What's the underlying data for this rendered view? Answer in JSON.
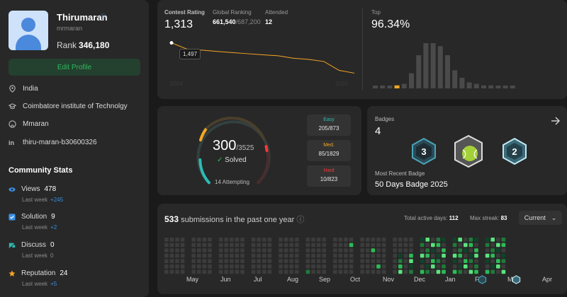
{
  "profile": {
    "name": "Thirumaran",
    "verified_icon": "verified-badge-icon",
    "handle": "mrmaran",
    "rank_label": "Rank",
    "rank_value": "346,180",
    "edit_label": "Edit Profile",
    "info": [
      {
        "icon": "location-icon",
        "text": "India"
      },
      {
        "icon": "school-icon",
        "text": "Coimbatore institute of Technolgy"
      },
      {
        "icon": "github-icon",
        "text": "Mmaran"
      },
      {
        "icon": "linkedin-icon",
        "text": "thiru-maran-b30600326"
      }
    ]
  },
  "community": {
    "title": "Community Stats",
    "stats": [
      {
        "icon": "eye-icon",
        "label": "Views",
        "value": "478",
        "sub": "Last week",
        "delta": "+245",
        "color": "#3a8fe4"
      },
      {
        "icon": "solution-icon",
        "label": "Solution",
        "value": "9",
        "sub": "Last week",
        "delta": "+2",
        "color": "#3a8fe4"
      },
      {
        "icon": "discuss-icon",
        "label": "Discuss",
        "value": "0",
        "sub": "Last week",
        "delta": "0",
        "color": "#2cbbb3"
      },
      {
        "icon": "star-icon",
        "label": "Reputation",
        "value": "24",
        "sub": "Last week",
        "delta": "+5",
        "color": "#f5a623"
      }
    ]
  },
  "contest": {
    "rating_label": "Contest Rating",
    "rating_value": "1,313",
    "global_label": "Global Ranking",
    "global_value": "661,540",
    "global_total": "/687,200",
    "attended_label": "Attended",
    "attended_value": "12",
    "tooltip": "1,497",
    "year_start": "2024",
    "year_end": "2025",
    "top_label": "Top",
    "top_value": "96.34%",
    "line_color": "#f5a623"
  },
  "chart_data": [
    {
      "type": "line",
      "title": "Contest Rating",
      "x": [
        1,
        2,
        3,
        4,
        5,
        6,
        7,
        8,
        9,
        10,
        11,
        12,
        13
      ],
      "values": [
        1500,
        1462,
        1455,
        1447,
        1440,
        1433,
        1426,
        1420,
        1405,
        1398,
        1385,
        1330,
        1313
      ],
      "xlabel": "",
      "ylabel": ""
    },
    {
      "type": "bar",
      "title": "Top",
      "values": [
        1,
        1,
        1,
        2,
        3,
        10,
        22,
        30,
        30,
        28,
        22,
        12,
        7,
        4,
        3,
        2,
        2,
        1,
        1,
        1
      ],
      "highlight_index": 3,
      "highlight_color": "#f5a623"
    }
  ],
  "solved": {
    "count": "300",
    "total": "/3525",
    "solved_label": "Solved",
    "attempting": "14 Attempting",
    "easy": {
      "label": "Easy",
      "value": "205/873",
      "color": "#2cbbb3"
    },
    "medium": {
      "label": "Med.",
      "value": "85/1829",
      "color": "#f5a623"
    },
    "hard": {
      "label": "Hard",
      "value": "10/823",
      "color": "#f63737"
    }
  },
  "badges": {
    "title": "Badges",
    "count": "4",
    "recent_label": "Most Recent Badge",
    "recent_name": "50 Days Badge 2025",
    "arrow_icon": "arrow-right-icon",
    "items": [
      {
        "icon": "badge-3-icon",
        "text": "3"
      },
      {
        "icon": "badge-tennis-icon",
        "text": ""
      },
      {
        "icon": "badge-2-icon",
        "text": "2"
      }
    ]
  },
  "submissions": {
    "count": "533",
    "text": "submissions in the past one year",
    "info_icon": "info-icon",
    "active_label": "Total active days:",
    "active_value": "112",
    "streak_label": "Max streak:",
    "streak_value": "83",
    "dropdown": "Current",
    "months": [
      "May",
      "Jun",
      "Jul",
      "Aug",
      "Sep",
      "Oct",
      "Nov",
      "Dec",
      "Jan",
      "Feb",
      "Mar",
      "Apr"
    ]
  }
}
